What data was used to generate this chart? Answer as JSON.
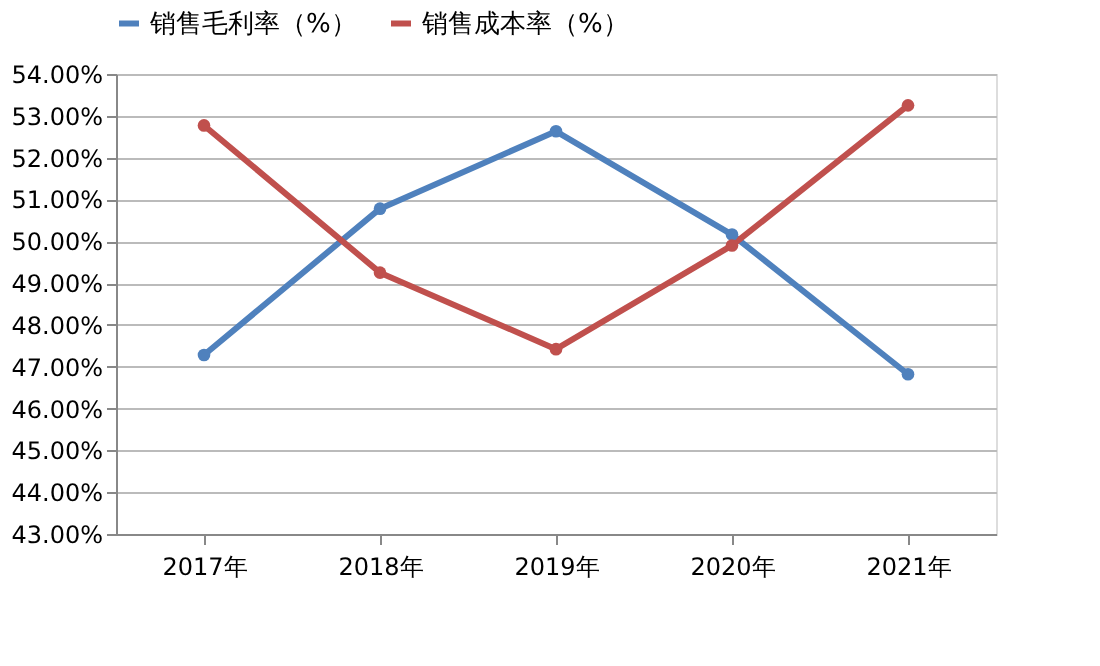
{
  "chart_data": {
    "type": "line",
    "categories": [
      "2017年",
      "2018年",
      "2019年",
      "2020年",
      "2021年"
    ],
    "series": [
      {
        "name": "销售毛利率（%）",
        "color": "#4f81bd",
        "values": [
          47.28,
          50.78,
          52.63,
          50.16,
          46.82
        ]
      },
      {
        "name": "销售成本率（%）",
        "color": "#c0504d",
        "values": [
          52.77,
          49.25,
          47.42,
          49.9,
          53.25
        ]
      }
    ],
    "ylim": [
      43,
      54
    ],
    "yticks": [
      {
        "value": 43,
        "label": "43.00%"
      },
      {
        "value": 44,
        "label": "44.00%"
      },
      {
        "value": 45,
        "label": "45.00%"
      },
      {
        "value": 46,
        "label": "46.00%"
      },
      {
        "value": 47,
        "label": "47.00%"
      },
      {
        "value": 48,
        "label": "48.00%"
      },
      {
        "value": 49,
        "label": "49.00%"
      },
      {
        "value": 50,
        "label": "50.00%"
      },
      {
        "value": 51,
        "label": "51.00%"
      },
      {
        "value": 52,
        "label": "52.00%"
      },
      {
        "value": 53,
        "label": "53.00%"
      },
      {
        "value": 54,
        "label": "54.00%"
      }
    ],
    "grid": "y",
    "legend": "top",
    "marker": "circle",
    "line_style": "solid"
  }
}
